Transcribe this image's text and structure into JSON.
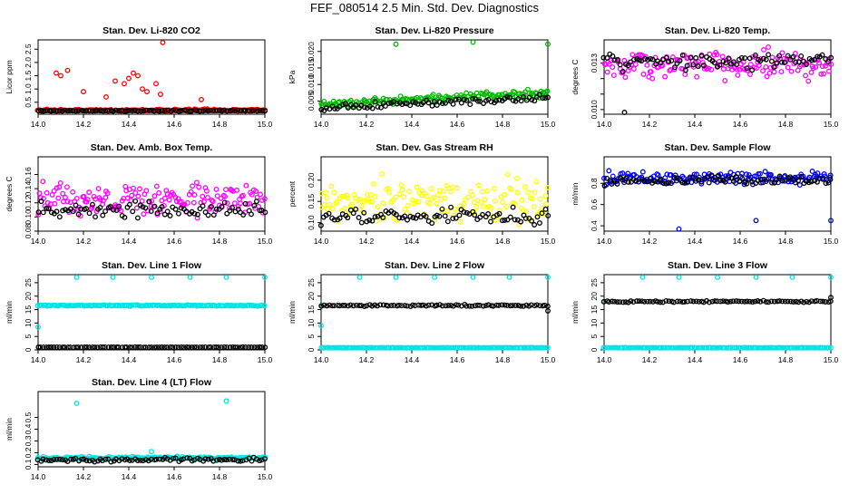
{
  "figure": {
    "title": "FEF_080514  2.5 Min. Std. Dev. Diagnostics",
    "colors": {
      "background": "#ffffff",
      "axis": "#000000",
      "black_series": "#000000"
    }
  },
  "chart_data": [
    {
      "type": "scatter",
      "key": "co2",
      "title": "Stan. Dev. Li-820 CO2",
      "xlabel": "",
      "ylabel": "Licor ppm",
      "color": "#ff0000",
      "xlim": [
        14.0,
        15.0
      ],
      "ylim": [
        0.05,
        2.85
      ],
      "xticks": [
        14.0,
        14.2,
        14.4,
        14.6,
        14.8,
        15.0
      ],
      "xtick_labels": [
        "14.0",
        "14.2",
        "14.4",
        "14.6",
        "14.8",
        "15.0"
      ],
      "yticks": [
        0.5,
        1.0,
        1.5,
        2.0,
        2.5
      ],
      "ytick_labels": [
        "0.5",
        "1.0",
        "1.5",
        "2.0",
        "2.5"
      ],
      "series": [
        {
          "name": "color",
          "color": "#ff0000",
          "baseline": 0.2,
          "noise": 0.04,
          "spikes": [
            [
              14.08,
              1.6
            ],
            [
              14.1,
              1.5
            ],
            [
              14.13,
              1.7
            ],
            [
              14.2,
              0.9
            ],
            [
              14.3,
              0.7
            ],
            [
              14.34,
              1.3
            ],
            [
              14.38,
              1.2
            ],
            [
              14.4,
              1.4
            ],
            [
              14.42,
              1.6
            ],
            [
              14.44,
              1.5
            ],
            [
              14.46,
              1.0
            ],
            [
              14.48,
              0.9
            ],
            [
              14.52,
              1.2
            ],
            [
              14.54,
              0.8
            ],
            [
              14.55,
              2.75
            ],
            [
              14.72,
              0.6
            ]
          ]
        },
        {
          "name": "black",
          "color": "#000000",
          "baseline": 0.18,
          "noise": 0.02,
          "spikes": []
        }
      ]
    },
    {
      "type": "scatter",
      "key": "pressure",
      "title": "Stan. Dev. Li-820 Pressure",
      "xlabel": "",
      "ylabel": "kPa",
      "color": "#00bb00",
      "xlim": [
        14.0,
        15.0
      ],
      "ylim": [
        0.001,
        0.0235
      ],
      "xticks": [
        14.0,
        14.2,
        14.4,
        14.6,
        14.8,
        15.0
      ],
      "xtick_labels": [
        "14.0",
        "14.2",
        "14.4",
        "14.6",
        "14.8",
        "15.0"
      ],
      "yticks": [
        0.005,
        0.01,
        0.015,
        0.02
      ],
      "ytick_labels": [
        "0.005",
        "0.010",
        "0.015",
        "0.020"
      ],
      "series": [
        {
          "name": "color",
          "color": "#00bb00",
          "baseline_start": 0.004,
          "baseline_end": 0.0075,
          "noise": 0.0012,
          "spikes": [
            [
              14.33,
              0.0222
            ],
            [
              14.67,
              0.0228
            ],
            [
              15.0,
              0.0222
            ]
          ]
        },
        {
          "name": "black",
          "color": "#000000",
          "baseline_start": 0.003,
          "baseline_end": 0.006,
          "noise": 0.001,
          "spikes": []
        }
      ]
    },
    {
      "type": "scatter",
      "key": "temp",
      "title": "Stan. Dev. Li-820 Temp.",
      "xlabel": "",
      "ylabel": "degrees C",
      "color": "#ff00ff",
      "xlim": [
        14.0,
        15.0
      ],
      "ylim": [
        0.0097,
        0.0145
      ],
      "xticks": [
        14.0,
        14.2,
        14.4,
        14.6,
        14.8,
        15.0
      ],
      "xtick_labels": [
        "14.0",
        "14.2",
        "14.4",
        "14.6",
        "14.8",
        "15.0"
      ],
      "yticks": [
        0.01,
        0.011,
        0.012,
        0.013
      ],
      "ytick_labels": [
        "0.010",
        "",
        "",
        "0.013"
      ],
      "series": [
        {
          "name": "color",
          "color": "#ff00ff",
          "baseline": 0.0129,
          "noise": 0.0009,
          "spikes": []
        },
        {
          "name": "black",
          "color": "#000000",
          "baseline": 0.0131,
          "noise": 0.0005,
          "spikes": [
            [
              14.09,
              0.0098
            ]
          ]
        }
      ]
    },
    {
      "type": "scatter",
      "key": "ambbox",
      "title": "Stan. Dev. Amb. Box Temp.",
      "xlabel": "",
      "ylabel": "degrees C",
      "color": "#ff00ff",
      "xlim": [
        14.0,
        15.0
      ],
      "ylim": [
        0.08,
        0.185
      ],
      "xticks": [
        14.0,
        14.2,
        14.4,
        14.6,
        14.8,
        15.0
      ],
      "xtick_labels": [
        "14.0",
        "14.2",
        "14.4",
        "14.6",
        "14.8",
        "15.0"
      ],
      "yticks": [
        0.08,
        0.1,
        0.12,
        0.14,
        0.16
      ],
      "ytick_labels": [
        "0.08",
        "0.10",
        "0.12",
        "0.14",
        "0.16"
      ],
      "series": [
        {
          "name": "color",
          "color": "#ff00ff",
          "baseline": 0.125,
          "noise": 0.024,
          "spikes": []
        },
        {
          "name": "black",
          "color": "#000000",
          "baseline": 0.11,
          "noise": 0.01,
          "spikes": []
        }
      ]
    },
    {
      "type": "scatter",
      "key": "rh",
      "title": "Stan. Dev. Gas Stream RH",
      "xlabel": "",
      "ylabel": "percent",
      "color": "#ffff00",
      "xlim": [
        14.0,
        15.0
      ],
      "ylim": [
        0.08,
        0.255
      ],
      "xticks": [
        14.0,
        14.2,
        14.4,
        14.6,
        14.8,
        15.0
      ],
      "xtick_labels": [
        "14.0",
        "14.2",
        "14.4",
        "14.6",
        "14.8",
        "15.0"
      ],
      "yticks": [
        0.1,
        0.15,
        0.2
      ],
      "ytick_labels": [
        "0.10",
        "0.15",
        "0.20"
      ],
      "series": [
        {
          "name": "color",
          "color": "#ffff00",
          "baseline": 0.15,
          "noise": 0.05,
          "spikes": []
        },
        {
          "name": "black",
          "color": "#000000",
          "baseline": 0.115,
          "noise": 0.02,
          "spikes": []
        }
      ]
    },
    {
      "type": "scatter",
      "key": "sampleflow",
      "title": "Stan. Dev. Sample Flow",
      "xlabel": "",
      "ylabel": "ml/min",
      "color": "#0000ff",
      "xlim": [
        14.0,
        15.0
      ],
      "ylim": [
        0.35,
        1.05
      ],
      "xticks": [
        14.0,
        14.2,
        14.4,
        14.6,
        14.8,
        15.0
      ],
      "xtick_labels": [
        "14.0",
        "14.2",
        "14.4",
        "14.6",
        "14.8",
        "15.0"
      ],
      "yticks": [
        0.4,
        0.6,
        0.8
      ],
      "ytick_labels": [
        "0.4",
        "0.6",
        "0.8"
      ],
      "series": [
        {
          "name": "color",
          "color": "#0000ff",
          "baseline": 0.85,
          "noise": 0.06,
          "spikes": [
            [
              14.33,
              0.37
            ],
            [
              14.67,
              0.45
            ],
            [
              15.0,
              0.45
            ]
          ]
        },
        {
          "name": "black",
          "color": "#000000",
          "baseline": 0.83,
          "noise": 0.04,
          "spikes": []
        }
      ]
    },
    {
      "type": "scatter",
      "key": "line1",
      "title": "Stan. Dev. Line 1 Flow",
      "xlabel": "",
      "ylabel": "ml/min",
      "color": "#00e5e5",
      "xlim": [
        14.0,
        15.0
      ],
      "ylim": [
        0,
        28
      ],
      "xticks": [
        14.0,
        14.2,
        14.4,
        14.6,
        14.8,
        15.0
      ],
      "xtick_labels": [
        "14.0",
        "14.2",
        "14.4",
        "14.6",
        "14.8",
        "15.0"
      ],
      "yticks": [
        0,
        5,
        10,
        15,
        20,
        25
      ],
      "ytick_labels": [
        "0",
        "5",
        "10",
        "15",
        "20",
        "25"
      ],
      "series": [
        {
          "name": "color",
          "color": "#00e5e5",
          "baseline": 16.5,
          "noise": 0.2,
          "spikes": [
            [
              14.0,
              8.5
            ],
            [
              14.17,
              27
            ],
            [
              14.33,
              27
            ],
            [
              14.5,
              27
            ],
            [
              14.67,
              27
            ],
            [
              14.83,
              27
            ],
            [
              15.0,
              27
            ]
          ]
        },
        {
          "name": "black",
          "color": "#000000",
          "baseline": 1.0,
          "noise": 0.05,
          "spikes": []
        }
      ]
    },
    {
      "type": "scatter",
      "key": "line2",
      "title": "Stan. Dev. Line 2 Flow",
      "xlabel": "",
      "ylabel": "ml/min",
      "color": "#00e5e5",
      "xlim": [
        14.0,
        15.0
      ],
      "ylim": [
        0,
        28
      ],
      "xticks": [
        14.0,
        14.2,
        14.4,
        14.6,
        14.8,
        15.0
      ],
      "xtick_labels": [
        "14.0",
        "14.2",
        "14.4",
        "14.6",
        "14.8",
        "15.0"
      ],
      "yticks": [
        0,
        5,
        10,
        15,
        20,
        25
      ],
      "ytick_labels": [
        "0",
        "5",
        "10",
        "15",
        "20",
        "25"
      ],
      "series": [
        {
          "name": "color",
          "color": "#00e5e5",
          "baseline": 0.8,
          "noise": 0.05,
          "spikes": [
            [
              14.0,
              9.0
            ],
            [
              14.0,
              16.5
            ],
            [
              14.17,
              27
            ],
            [
              14.33,
              27
            ],
            [
              14.5,
              27
            ],
            [
              14.67,
              27
            ],
            [
              14.83,
              27
            ],
            [
              15.0,
              27
            ]
          ]
        },
        {
          "name": "black",
          "color": "#000000",
          "baseline": 16.5,
          "noise": 0.3,
          "spikes": [
            [
              15.0,
              14.5
            ]
          ]
        }
      ]
    },
    {
      "type": "scatter",
      "key": "line3",
      "title": "Stan. Dev. Line 3 Flow",
      "xlabel": "",
      "ylabel": "ml/min",
      "color": "#00e5e5",
      "xlim": [
        14.0,
        15.0
      ],
      "ylim": [
        0,
        28
      ],
      "xticks": [
        14.0,
        14.2,
        14.4,
        14.6,
        14.8,
        15.0
      ],
      "xtick_labels": [
        "14.0",
        "14.2",
        "14.4",
        "14.6",
        "14.8",
        "15.0"
      ],
      "yticks": [
        0,
        5,
        10,
        15,
        20,
        25
      ],
      "ytick_labels": [
        "0",
        "5",
        "10",
        "15",
        "20",
        "25"
      ],
      "series": [
        {
          "name": "color",
          "color": "#00e5e5",
          "baseline": 0.8,
          "noise": 0.05,
          "spikes": [
            [
              14.0,
              18.0
            ],
            [
              14.17,
              27
            ],
            [
              14.33,
              27
            ],
            [
              14.5,
              27
            ],
            [
              14.67,
              27
            ],
            [
              14.83,
              27
            ],
            [
              15.0,
              27
            ]
          ]
        },
        {
          "name": "black",
          "color": "#000000",
          "baseline": 18.0,
          "noise": 0.3,
          "spikes": [
            [
              15.0,
              19.5
            ]
          ]
        }
      ]
    },
    {
      "type": "scatter",
      "key": "line4",
      "title": "Stan. Dev. Line 4 (LT) Flow",
      "xlabel": "",
      "ylabel": "ml/min",
      "color": "#00e5e5",
      "xlim": [
        14.0,
        15.0
      ],
      "ylim": [
        0.08,
        0.72
      ],
      "xticks": [
        14.0,
        14.2,
        14.4,
        14.6,
        14.8,
        15.0
      ],
      "xtick_labels": [
        "14.0",
        "14.2",
        "14.4",
        "14.6",
        "14.8",
        "15.0"
      ],
      "yticks": [
        0.1,
        0.2,
        0.3,
        0.4,
        0.5
      ],
      "ytick_labels": [
        "0.1",
        "0.2",
        "0.3",
        "0.4",
        "0.5"
      ],
      "series": [
        {
          "name": "color",
          "color": "#00e5e5",
          "baseline": 0.155,
          "noise": 0.012,
          "spikes": [
            [
              14.17,
              0.62
            ],
            [
              14.5,
              0.21
            ],
            [
              14.83,
              0.64
            ]
          ]
        },
        {
          "name": "black",
          "color": "#000000",
          "baseline": 0.14,
          "noise": 0.015,
          "spikes": []
        }
      ]
    }
  ]
}
